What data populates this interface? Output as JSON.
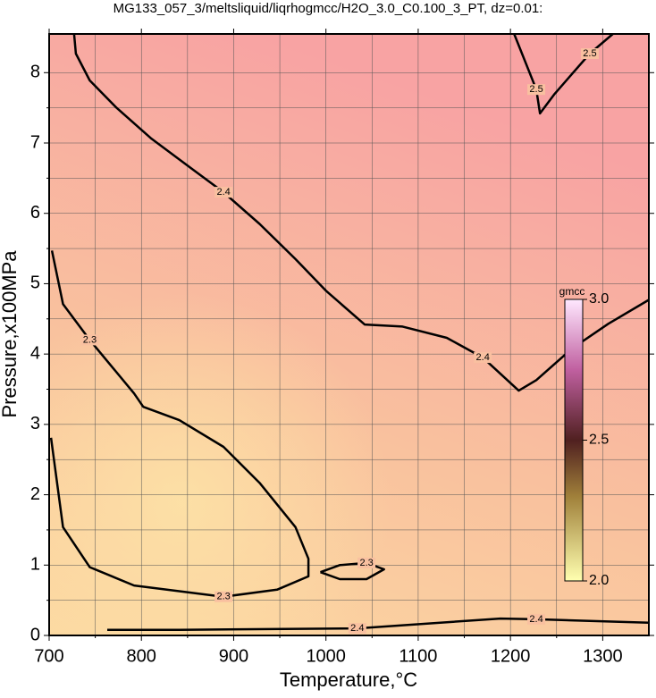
{
  "chart_data": {
    "type": "contour",
    "title": "MG133_057_3/meltsliquid/liqrhogmcc/H2O_3.0_C0.100_3_PT, dz=0.01:",
    "x_label": "Temperature,°C",
    "y_label": "Pressure,x100MPa",
    "xlim": [
      700,
      1350
    ],
    "ylim": [
      0,
      8.55
    ],
    "xticks": [
      700,
      800,
      900,
      1000,
      1100,
      1200,
      1300
    ],
    "yticks": [
      0,
      1,
      2,
      3,
      4,
      5,
      6,
      7,
      8
    ],
    "xminorticks": [
      750,
      850,
      950,
      1050,
      1150,
      1250
    ],
    "yminorticks": [
      0.5,
      1.5,
      2.5,
      3.5,
      4.5,
      5.5,
      6.5,
      7.5
    ],
    "grid": true,
    "contours": [
      {
        "level": 2.4,
        "x": [
          727,
          729,
          744,
          773,
          811,
          850,
          889,
          928,
          967,
          1000,
          1042,
          1083,
          1131,
          1170,
          1209,
          1228,
          1267,
          1306,
          1350
        ],
        "y": [
          8.55,
          8.27,
          7.89,
          7.5,
          7.06,
          6.68,
          6.3,
          5.85,
          5.35,
          4.9,
          4.42,
          4.39,
          4.23,
          3.95,
          3.48,
          3.63,
          4.08,
          4.43,
          4.77
        ]
      },
      {
        "level": 2.3,
        "x": [
          703,
          715,
          744,
          768,
          792,
          802,
          841,
          889,
          928,
          967,
          981,
          981,
          947,
          889,
          792,
          744,
          715,
          702
        ],
        "y": [
          5.47,
          4.71,
          4.2,
          3.82,
          3.44,
          3.25,
          3.06,
          2.68,
          2.17,
          1.54,
          1.09,
          0.84,
          0.65,
          0.55,
          0.71,
          0.97,
          1.54,
          2.81
        ]
      },
      {
        "level": 2.3,
        "x": [
          994,
          1015,
          1044,
          1063,
          1044,
          1015,
          994
        ],
        "y": [
          0.9,
          1.0,
          1.03,
          0.94,
          0.8,
          0.8,
          0.9
        ]
      },
      {
        "level": 2.5,
        "x": [
          1204,
          1228,
          1232,
          1248,
          1286,
          1311
        ],
        "y": [
          8.55,
          7.76,
          7.42,
          7.7,
          8.27,
          8.55
        ]
      },
      {
        "level": 2.4,
        "x": [
          763,
          841,
          1034,
          1189,
          1228,
          1350
        ],
        "y": [
          0.08,
          0.08,
          0.1,
          0.24,
          0.23,
          0.18
        ]
      }
    ],
    "colorbar": {
      "label": "gmcc",
      "lim": [
        2,
        3
      ],
      "ticks": [
        {
          "value": 2,
          "label": "2.0"
        },
        2.5,
        {
          "value": 3,
          "label": "3.0"
        }
      ]
    }
  }
}
